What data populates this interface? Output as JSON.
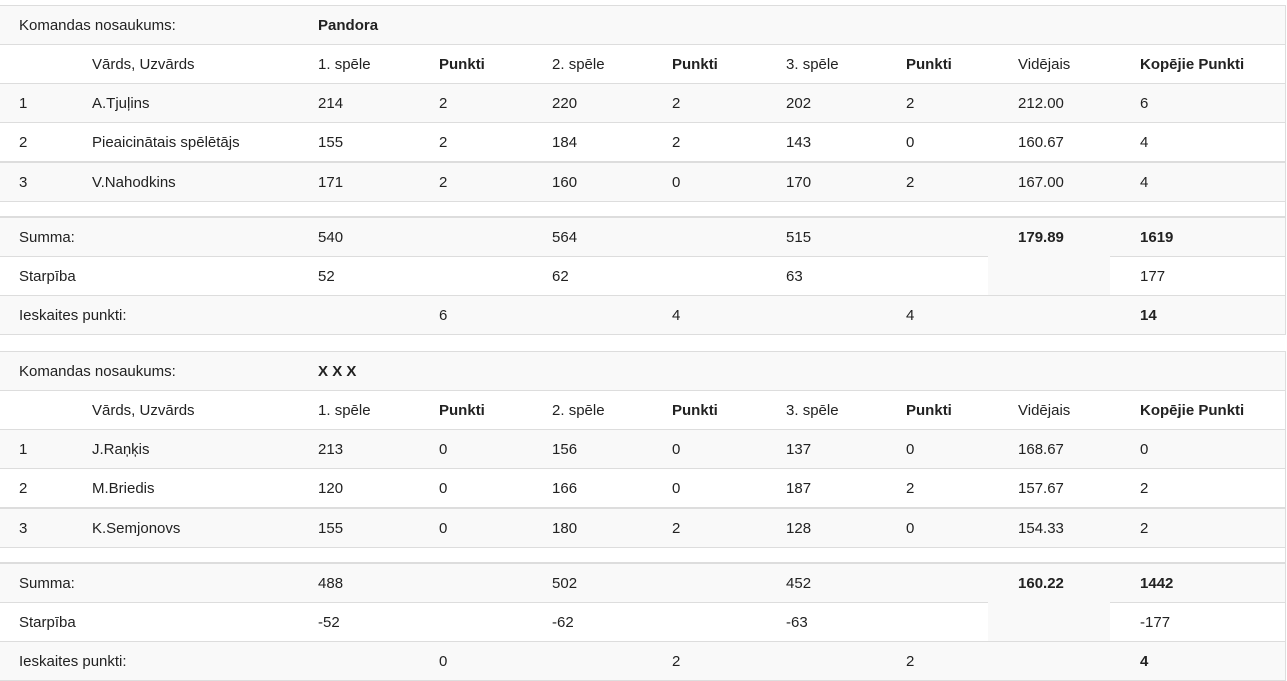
{
  "labels": {
    "team": "Komandas nosaukums:",
    "name": "Vārds, Uzvārds",
    "g1": "1. spēle",
    "g2": "2. spēle",
    "g3": "3. spēle",
    "pts": "Punkti",
    "avg": "Vidējais",
    "total": "Kopējie Punkti",
    "sum": "Summa:",
    "diff": "Starpība",
    "score": "Ieskaites punkti:"
  },
  "teams": [
    {
      "name": "Pandora",
      "players": [
        [
          "1",
          "A.Tjuļins",
          "214",
          "2",
          "220",
          "2",
          "202",
          "2",
          "212.00",
          "6"
        ],
        [
          "2",
          "Pieaicinātais spēlētājs",
          "155",
          "2",
          "184",
          "2",
          "143",
          "0",
          "160.67",
          "4"
        ],
        [
          "3",
          "V.Nahodkins",
          "171",
          "2",
          "160",
          "0",
          "170",
          "2",
          "167.00",
          "4"
        ]
      ],
      "sum": [
        "540",
        "564",
        "515",
        "179.89",
        "1619"
      ],
      "diff": [
        "52",
        "62",
        "63",
        "177"
      ],
      "score": [
        "6",
        "4",
        "4",
        "14"
      ]
    },
    {
      "name": "X X X",
      "players": [
        [
          "1",
          "J.Raņķis",
          "213",
          "0",
          "156",
          "0",
          "137",
          "0",
          "168.67",
          "0"
        ],
        [
          "2",
          "M.Briedis",
          "120",
          "0",
          "166",
          "0",
          "187",
          "2",
          "157.67",
          "2"
        ],
        [
          "3",
          "K.Semjonovs",
          "155",
          "0",
          "180",
          "2",
          "128",
          "0",
          "154.33",
          "2"
        ]
      ],
      "sum": [
        "488",
        "502",
        "452",
        "160.22",
        "1442"
      ],
      "diff": [
        "-52",
        "-62",
        "-63",
        "-177"
      ],
      "score": [
        "0",
        "2",
        "2",
        "4"
      ]
    }
  ]
}
